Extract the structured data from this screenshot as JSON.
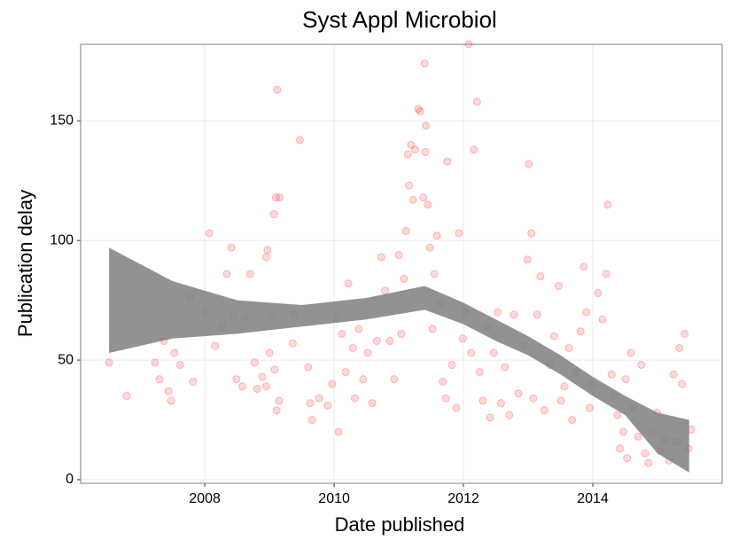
{
  "chart_data": {
    "type": "scatter",
    "title": "Syst Appl Microbiol",
    "xlabel": "Date published",
    "ylabel": "Publication delay",
    "color": "#ff0000",
    "grid": true,
    "xlim": [
      2006.08,
      2016.0
    ],
    "xticks": [
      2008,
      2010,
      2012,
      2014
    ],
    "ylim": [
      -1.5,
      182
    ],
    "yticks": [
      0,
      50,
      100,
      150
    ],
    "x": [
      2006.52,
      2006.79,
      2007.23,
      2007.3,
      2007.37,
      2007.44,
      2007.48,
      2007.53,
      2007.62,
      2007.78,
      2007.82,
      2008.01,
      2008.07,
      2008.16,
      2008.26,
      2008.34,
      2008.41,
      2008.44,
      2008.49,
      2008.58,
      2008.62,
      2008.7,
      2008.77,
      2008.81,
      2008.89,
      2008.95,
      2008.95,
      2008.97,
      2009.0,
      2009.04,
      2009.07,
      2009.1,
      2009.12,
      2009.16,
      2009.08,
      2009.11,
      2009.15,
      2009.36,
      2009.38,
      2009.47,
      2009.6,
      2009.63,
      2009.66,
      2009.77,
      2009.9,
      2009.97,
      2010.04,
      2010.07,
      2010.12,
      2010.18,
      2010.22,
      2010.29,
      2010.32,
      2010.38,
      2010.45,
      2010.52,
      2010.59,
      2010.66,
      2010.73,
      2010.79,
      2010.86,
      2010.93,
      2011.0,
      2011.04,
      2011.08,
      2011.11,
      2011.14,
      2011.16,
      2011.19,
      2011.22,
      2011.25,
      2011.3,
      2011.33,
      2011.38,
      2011.4,
      2011.41,
      2011.42,
      2011.45,
      2011.48,
      2011.52,
      2011.55,
      2011.59,
      2011.64,
      2011.68,
      2011.73,
      2011.75,
      2011.82,
      2011.89,
      2011.93,
      2011.99,
      2012.04,
      2012.08,
      2012.12,
      2012.16,
      2012.21,
      2012.25,
      2012.3,
      2012.37,
      2012.41,
      2012.47,
      2012.53,
      2012.58,
      2012.64,
      2012.71,
      2012.78,
      2012.85,
      2012.92,
      2012.99,
      2013.01,
      2013.05,
      2013.08,
      2013.14,
      2013.19,
      2013.25,
      2013.33,
      2013.4,
      2013.47,
      2013.51,
      2013.56,
      2013.63,
      2013.68,
      2013.74,
      2013.81,
      2013.86,
      2013.9,
      2013.95,
      2014.01,
      2014.08,
      2014.15,
      2014.21,
      2014.23,
      2014.29,
      2014.33,
      2014.38,
      2014.42,
      2014.47,
      2014.51,
      2014.53,
      2014.59,
      2014.63,
      2014.7,
      2014.75,
      2014.81,
      2014.86,
      2014.93,
      2014.99,
      2015.04,
      2015.11,
      2015.18,
      2015.25,
      2015.3,
      2015.34,
      2015.38,
      2015.42,
      2015.48,
      2015.52
    ],
    "values": [
      49,
      35,
      49,
      42,
      58,
      37,
      33,
      53,
      48,
      76,
      41,
      70,
      103,
      56,
      64,
      86,
      97,
      69,
      42,
      39,
      68,
      86,
      49,
      38,
      43,
      93,
      39,
      96,
      53,
      69,
      111,
      118,
      163,
      118,
      46,
      29,
      33,
      57,
      69,
      142,
      47,
      32,
      25,
      34,
      31,
      40,
      68,
      20,
      61,
      45,
      82,
      55,
      34,
      63,
      42,
      53,
      32,
      58,
      93,
      79,
      58,
      42,
      94,
      61,
      84,
      104,
      136,
      123,
      140,
      117,
      138,
      155,
      154,
      118,
      174,
      137,
      148,
      115,
      97,
      63,
      86,
      102,
      74,
      41,
      34,
      133,
      48,
      30,
      103,
      59,
      70,
      182,
      53,
      138,
      158,
      45,
      33,
      64,
      26,
      53,
      70,
      32,
      47,
      27,
      69,
      36,
      56,
      92,
      132,
      103,
      34,
      69,
      85,
      29,
      48,
      60,
      81,
      33,
      39,
      55,
      25,
      45,
      62,
      89,
      70,
      30,
      40,
      78,
      67,
      86,
      115,
      44,
      35,
      27,
      13,
      20,
      42,
      9,
      53,
      30,
      18,
      48,
      11,
      7,
      20,
      28,
      12,
      17,
      8,
      44,
      16,
      55,
      40,
      61,
      13,
      21
    ],
    "band": {
      "color": "#7f7f7f",
      "x": [
        2006.52,
        2007.5,
        2008.5,
        2009.5,
        2010.5,
        2011.4,
        2012,
        2012.5,
        2013,
        2013.5,
        2014,
        2014.5,
        2015,
        2015.49
      ],
      "upper": [
        97,
        83,
        75,
        73,
        76,
        81,
        74,
        67,
        60,
        52,
        43,
        35,
        28,
        25
      ],
      "lower": [
        53,
        59,
        61,
        64,
        67,
        71,
        65,
        58,
        52,
        44,
        35,
        27,
        11,
        3
      ]
    }
  }
}
